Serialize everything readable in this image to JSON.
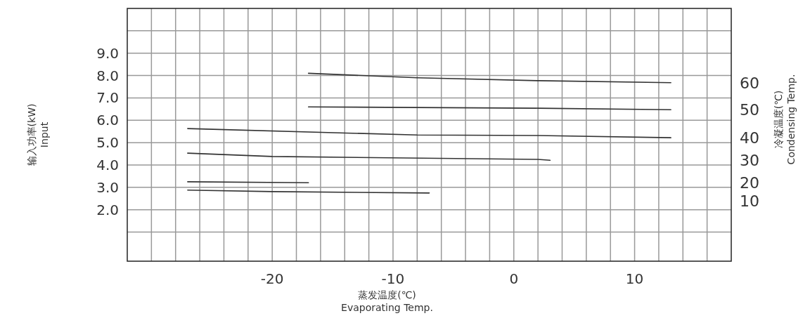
{
  "chart_data": {
    "type": "line",
    "xlabel": "蒸发温度(℃)\nEvaporating Temp.",
    "ylabel": "输入功率(kW)\nInput",
    "y2label": "冷凝温度(℃)\nCondensing Temp.",
    "xlim": [
      -32,
      18
    ],
    "ylim": [
      -0.3,
      11
    ],
    "xticks": [
      {
        "value": -30,
        "label": null
      },
      {
        "value": -28,
        "label": null
      },
      {
        "value": -26,
        "label": null
      },
      {
        "value": -24,
        "label": null
      },
      {
        "value": -22,
        "label": null
      },
      -20,
      {
        "value": -18,
        "label": null
      },
      {
        "value": -16,
        "label": null
      },
      {
        "value": -14,
        "label": null
      },
      {
        "value": -12,
        "label": null
      },
      -10,
      {
        "value": -8,
        "label": null
      },
      {
        "value": -6,
        "label": null
      },
      {
        "value": -4,
        "label": null
      },
      {
        "value": -2,
        "label": null
      },
      0,
      {
        "value": 2,
        "label": null
      },
      {
        "value": 4,
        "label": null
      },
      {
        "value": 6,
        "label": null
      },
      {
        "value": 8,
        "label": null
      },
      10,
      {
        "value": 12,
        "label": null
      },
      {
        "value": 14,
        "label": null
      },
      {
        "value": 16,
        "label": null
      }
    ],
    "yticks": [
      {
        "value": 1,
        "label": null
      },
      {
        "value": 2,
        "label": "2.0"
      },
      {
        "value": 3,
        "label": "3.0"
      },
      {
        "value": 4,
        "label": "4.0"
      },
      {
        "value": 5,
        "label": "5.0"
      },
      {
        "value": 6,
        "label": "6.0"
      },
      {
        "value": 7,
        "label": "7.0"
      },
      {
        "value": 8,
        "label": "8.0"
      },
      {
        "value": 9,
        "label": "9.0"
      },
      {
        "value": 10,
        "label": null
      }
    ],
    "grid": true,
    "marker": "none",
    "line_style": "solid",
    "series": [
      {
        "name": "60",
        "color": "#333333",
        "x": [
          -17,
          -8,
          2,
          13
        ],
        "values": [
          8.1,
          7.9,
          7.77,
          7.68
        ]
      },
      {
        "name": "50",
        "color": "#333333",
        "x": [
          -17,
          2,
          13
        ],
        "values": [
          6.6,
          6.54,
          6.47
        ]
      },
      {
        "name": "40",
        "color": "#333333",
        "x": [
          -27,
          -8,
          2,
          13
        ],
        "values": [
          5.63,
          5.34,
          5.32,
          5.22
        ]
      },
      {
        "name": "30",
        "color": "#333333",
        "x": [
          -27,
          -20,
          2,
          3
        ],
        "values": [
          4.53,
          4.38,
          4.25,
          4.21
        ]
      },
      {
        "name": "20",
        "color": "#333333",
        "x": [
          -27,
          -17
        ],
        "values": [
          3.25,
          3.21
        ]
      },
      {
        "name": "10",
        "color": "#333333",
        "x": [
          -27,
          -20,
          -7
        ],
        "values": [
          2.88,
          2.81,
          2.75
        ]
      }
    ]
  }
}
